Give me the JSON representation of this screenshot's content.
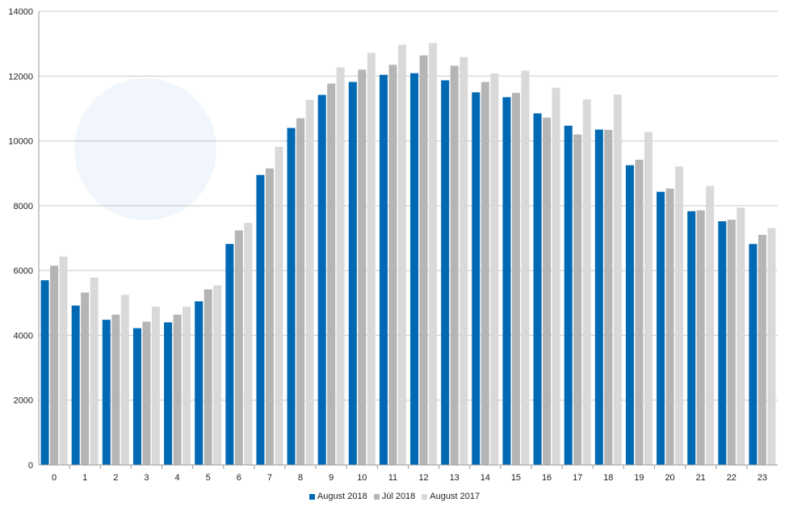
{
  "chart_data": {
    "type": "bar",
    "title": "",
    "xlabel": "",
    "ylabel": "",
    "ylim": [
      0,
      14000
    ],
    "yticks": [
      0,
      2000,
      4000,
      6000,
      8000,
      10000,
      12000,
      14000
    ],
    "grid": true,
    "legend_position": "bottom",
    "categories": [
      "0",
      "1",
      "2",
      "3",
      "4",
      "5",
      "6",
      "7",
      "8",
      "9",
      "10",
      "11",
      "12",
      "13",
      "14",
      "15",
      "16",
      "17",
      "18",
      "19",
      "20",
      "21",
      "22",
      "23"
    ],
    "series": [
      {
        "name": "August 2018",
        "color": "#0069b4",
        "values": [
          5700,
          4920,
          4480,
          4220,
          4400,
          5050,
          6820,
          8950,
          10400,
          11420,
          11820,
          12040,
          12090,
          11870,
          11500,
          11350,
          10850,
          10470,
          10350,
          9250,
          8430,
          7830,
          7520,
          6820
        ]
      },
      {
        "name": "Júl 2018",
        "color": "#b5b5b5",
        "values": [
          6150,
          5320,
          4640,
          4420,
          4640,
          5420,
          7240,
          9150,
          10700,
          11770,
          12200,
          12350,
          12640,
          12320,
          11820,
          11480,
          10720,
          10200,
          10340,
          9420,
          8530,
          7860,
          7570,
          7100
        ]
      },
      {
        "name": "August 2017",
        "color": "#d9d9d9",
        "values": [
          6430,
          5780,
          5250,
          4880,
          4880,
          5540,
          7470,
          9820,
          11270,
          12270,
          12720,
          12970,
          13020,
          12590,
          12080,
          12170,
          11640,
          11280,
          11430,
          10280,
          9210,
          8610,
          7940,
          7310
        ]
      }
    ]
  }
}
